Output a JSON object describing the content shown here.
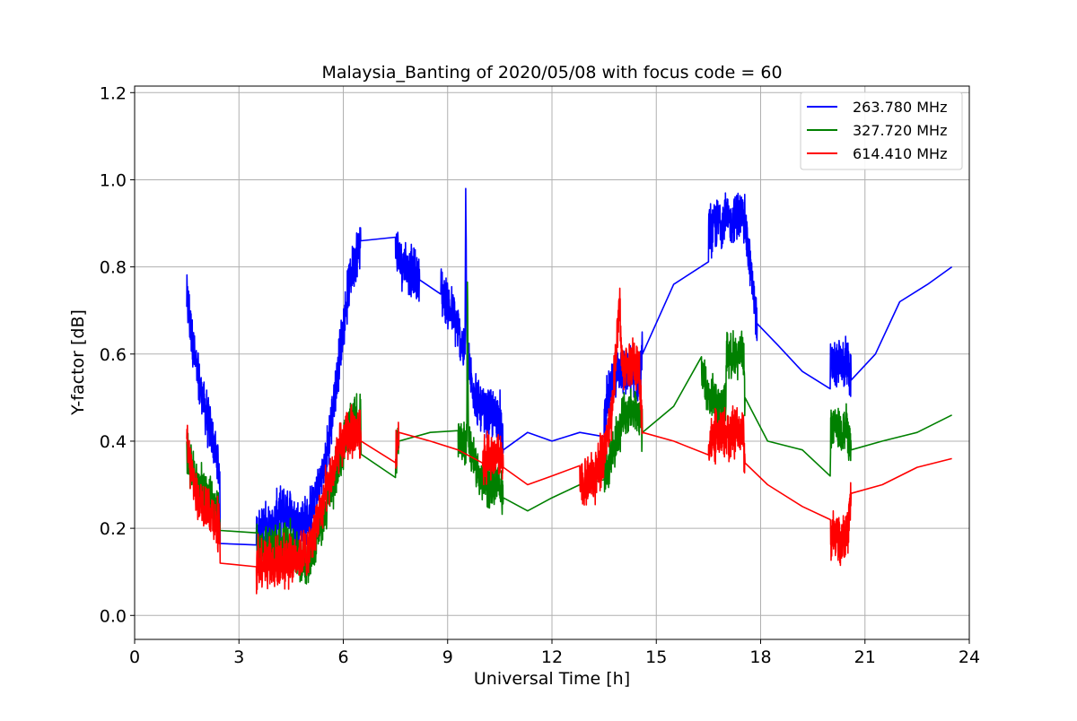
{
  "chart_data": {
    "type": "line",
    "title": "Malaysia_Banting of 2020/05/08 with focus code = 60",
    "xlabel": "Universal Time [h]",
    "ylabel": "Y-factor [dB]",
    "xlim": [
      0,
      24
    ],
    "ylim": [
      -0.055,
      1.215
    ],
    "xticks": [
      0,
      3,
      6,
      9,
      12,
      15,
      18,
      21,
      24
    ],
    "xtick_labels": [
      "0",
      "3",
      "6",
      "9",
      "12",
      "15",
      "18",
      "21",
      "24"
    ],
    "yticks": [
      0.0,
      0.2,
      0.4,
      0.6,
      0.8,
      1.0,
      1.2
    ],
    "ytick_labels": [
      "0.0",
      "0.2",
      "0.4",
      "0.6",
      "0.8",
      "1.0",
      "1.2"
    ],
    "grid": true,
    "legend_position": "top-right",
    "series": [
      {
        "name": "263.780 MHz",
        "color": "#0000ff",
        "noise": 0.05,
        "x": [
          1.5,
          1.8,
          2.1,
          2.45,
          2.46,
          3.5,
          3.55,
          4.0,
          4.1,
          4.5,
          4.6,
          5.0,
          5.5,
          5.9,
          6.2,
          6.5,
          6.51,
          7.5,
          7.6,
          8.2,
          8.8,
          9.2,
          9.5,
          9.52,
          9.55,
          9.65,
          10.0,
          10.01,
          10.5,
          10.6,
          11.3,
          12.0,
          12.8,
          13.5,
          13.8,
          14.0,
          14.01,
          14.5,
          14.6,
          15.5,
          16.5,
          17.0,
          17.01,
          17.5,
          17.55,
          17.9,
          18.5,
          19.2,
          20.0,
          20.01,
          20.5,
          20.6,
          21.3,
          22.0,
          22.8,
          23.5
        ],
        "y": [
          0.73,
          0.55,
          0.45,
          0.33,
          0.165,
          0.17,
          0.2,
          0.2,
          0.23,
          0.24,
          0.21,
          0.22,
          0.35,
          0.6,
          0.78,
          0.86,
          0.86,
          0.845,
          0.82,
          0.77,
          0.75,
          0.68,
          0.6,
          1.0,
          0.6,
          0.55,
          0.46,
          0.46,
          0.46,
          0.38,
          0.42,
          0.4,
          0.42,
          0.46,
          0.55,
          0.58,
          0.555,
          0.555,
          0.6,
          0.76,
          0.88,
          0.92,
          0.9,
          0.92,
          0.9,
          0.67,
          0.62,
          0.56,
          0.52,
          0.57,
          0.58,
          0.54,
          0.6,
          0.72,
          0.76,
          0.8
        ]
      },
      {
        "name": "327.720 MHz",
        "color": "#008000",
        "noise": 0.045,
        "x": [
          1.5,
          1.8,
          2.1,
          2.45,
          2.46,
          3.5,
          3.55,
          4.0,
          4.1,
          4.5,
          4.6,
          5.0,
          5.5,
          5.9,
          6.2,
          6.5,
          6.51,
          7.5,
          7.6,
          8.5,
          9.3,
          9.55,
          9.57,
          9.6,
          10.0,
          10.01,
          10.5,
          10.6,
          11.3,
          12.0,
          12.8,
          13.5,
          14.0,
          14.01,
          14.5,
          14.6,
          15.5,
          16.3,
          16.5,
          17.0,
          17.01,
          17.5,
          17.55,
          18.2,
          19.2,
          20.0,
          20.01,
          20.5,
          20.6,
          21.5,
          22.5,
          23.5
        ],
        "y": [
          0.37,
          0.3,
          0.28,
          0.22,
          0.195,
          0.18,
          0.16,
          0.15,
          0.16,
          0.17,
          0.14,
          0.12,
          0.24,
          0.36,
          0.44,
          0.46,
          0.37,
          0.36,
          0.4,
          0.42,
          0.4,
          0.4,
          0.78,
          0.4,
          0.3,
          0.3,
          0.3,
          0.27,
          0.24,
          0.27,
          0.3,
          0.32,
          0.44,
          0.46,
          0.47,
          0.42,
          0.48,
          0.55,
          0.5,
          0.48,
          0.6,
          0.6,
          0.5,
          0.4,
          0.38,
          0.32,
          0.43,
          0.43,
          0.38,
          0.4,
          0.42,
          0.46
        ]
      },
      {
        "name": "614.410 MHz",
        "color": "#ff0000",
        "noise": 0.05,
        "x": [
          1.5,
          1.8,
          2.1,
          2.45,
          2.46,
          3.5,
          3.55,
          4.0,
          4.1,
          4.5,
          4.6,
          5.0,
          5.5,
          5.9,
          6.2,
          6.5,
          6.51,
          7.5,
          7.6,
          8.5,
          9.3,
          10.0,
          10.01,
          10.5,
          10.6,
          11.3,
          12.0,
          12.8,
          13.3,
          13.7,
          13.95,
          14.0,
          14.01,
          14.5,
          14.6,
          15.5,
          16.5,
          17.0,
          17.01,
          17.5,
          17.55,
          18.2,
          19.2,
          20.0,
          20.01,
          20.5,
          20.6,
          21.5,
          22.5,
          23.5
        ],
        "y": [
          0.38,
          0.27,
          0.25,
          0.2,
          0.12,
          0.1,
          0.13,
          0.12,
          0.125,
          0.125,
          0.13,
          0.15,
          0.28,
          0.38,
          0.42,
          0.42,
          0.4,
          0.38,
          0.42,
          0.4,
          0.38,
          0.35,
          0.36,
          0.36,
          0.34,
          0.3,
          0.32,
          0.3,
          0.32,
          0.45,
          0.72,
          0.58,
          0.58,
          0.57,
          0.42,
          0.4,
          0.4,
          0.42,
          0.42,
          0.42,
          0.35,
          0.3,
          0.25,
          0.22,
          0.18,
          0.18,
          0.28,
          0.3,
          0.34,
          0.36
        ]
      }
    ]
  }
}
